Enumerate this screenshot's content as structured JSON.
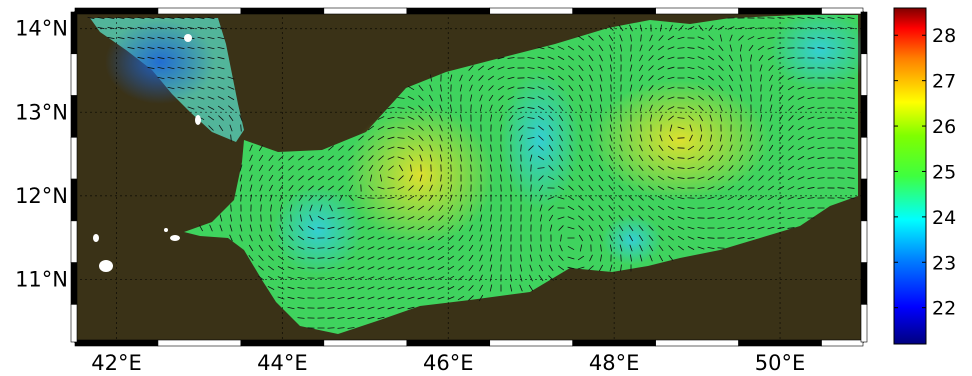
{
  "map": {
    "lon_labels": [
      "42°E",
      "44°E",
      "46°E",
      "48°E",
      "50°E"
    ],
    "lat_labels": [
      "14°N",
      "13°N",
      "12°N",
      "11°N"
    ],
    "land_color": "#3a3217",
    "frame_color": "#000000",
    "eddies": [
      {
        "lon": 44.3,
        "lat": 11.6,
        "sense": "anticyclonic"
      },
      {
        "lon": 45.6,
        "lat": 12.3,
        "sense": "anticyclonic"
      },
      {
        "lon": 46.9,
        "lat": 12.8,
        "sense": "cyclonic"
      },
      {
        "lon": 48.7,
        "lat": 12.6,
        "sense": "anticyclonic"
      },
      {
        "lon": 47.6,
        "lat": 11.5,
        "sense": "cyclonic"
      }
    ]
  },
  "colorbar": {
    "ticks": [
      "28",
      "27",
      "26",
      "25",
      "24",
      "23",
      "22"
    ],
    "colormap": [
      "#00007f",
      "#0000ff",
      "#007fff",
      "#00ffff",
      "#3fff3f",
      "#7fff00",
      "#ffff00",
      "#ff7f00",
      "#ff0000",
      "#7f0000"
    ]
  }
}
